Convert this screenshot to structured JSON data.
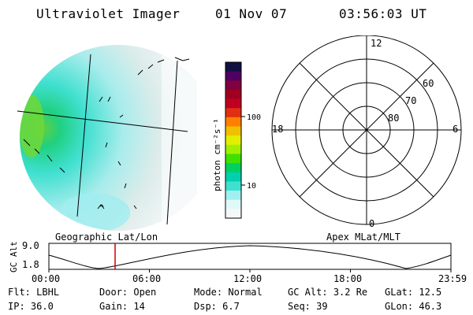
{
  "header": {
    "title": "Ultraviolet Imager",
    "date": "01 Nov 07",
    "time": "03:56:03 UT"
  },
  "colorbar": {
    "label": "photon cm⁻²s⁻¹",
    "ticks": [
      "100",
      "10"
    ],
    "colors": [
      "#101040",
      "#500060",
      "#800040",
      "#a00020",
      "#c00020",
      "#e03010",
      "#ff8000",
      "#f0c000",
      "#e0f000",
      "#a0f000",
      "#40e000",
      "#00d060",
      "#00d0b0",
      "#40e0d0",
      "#a0f0f0",
      "#e0f8f8",
      "#f4f8f8"
    ]
  },
  "image_panel": {
    "label": "Geographic Lat/Lon",
    "caret": "^"
  },
  "polar_plot": {
    "label": "Apex MLat/MLT",
    "mlt_labels": {
      "top": "12",
      "left": "18",
      "right": "6",
      "bottom": "0"
    },
    "lat_labels": [
      "60",
      "70",
      "80"
    ]
  },
  "altitude_strip": {
    "ylabel": "GC Alt",
    "y_ticks": [
      "9.0",
      "1.8"
    ],
    "x_ticks": [
      "00:00",
      "06:00",
      "12:00",
      "18:00",
      "23:59"
    ],
    "marker_time": "03:56"
  },
  "info": {
    "row1": [
      {
        "label": "Flt:",
        "value": "LBHL"
      },
      {
        "label": "Door:",
        "value": "Open"
      },
      {
        "label": "Mode:",
        "value": "Normal"
      },
      {
        "label": "GC Alt:",
        "value": "3.2 Re"
      },
      {
        "label": "GLat:",
        "value": "12.5"
      }
    ],
    "row2": [
      {
        "label": "IP:",
        "value": "36.0"
      },
      {
        "label": "Gain:",
        "value": "14"
      },
      {
        "label": "Dsp:",
        "value": "6.7"
      },
      {
        "label": "Seq:",
        "value": "39"
      },
      {
        "label": "GLon:",
        "value": "46.3"
      }
    ]
  }
}
